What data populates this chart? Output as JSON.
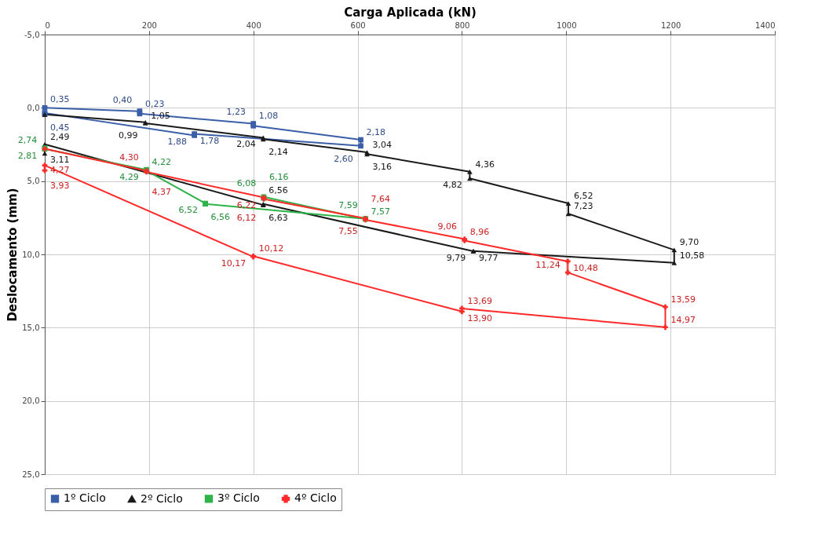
{
  "chart_data": {
    "type": "line",
    "xlabel": "Carga Aplicada (kN)",
    "ylabel": "Deslocamento (mm)",
    "xlim": [
      0,
      1400
    ],
    "xticks": [
      0,
      200,
      400,
      600,
      800,
      1000,
      1200,
      1400
    ],
    "ylim": [
      25,
      -5
    ],
    "yticks": [
      {
        "value": -5,
        "label": "-5,0"
      },
      {
        "value": 0,
        "label": "0,0"
      },
      {
        "value": 5,
        "label": "5,0"
      },
      {
        "value": 10,
        "label": "10,0"
      },
      {
        "value": 15,
        "label": "15,0"
      },
      {
        "value": 20,
        "label": "20,0"
      },
      {
        "value": 25,
        "label": "25,0"
      }
    ],
    "grid": true,
    "legend": "bottom",
    "line_style": "solid",
    "series": [
      {
        "name": "1º Ciclo",
        "color": "#3b5ea8",
        "marker": "square",
        "x": [
          0,
          182,
          182,
          400,
          400,
          606,
          606,
          287,
          287,
          0,
          0
        ],
        "values": [
          0,
          0.23,
          0.4,
          1.08,
          1.23,
          2.18,
          2.6,
          1.78,
          1.88,
          0.35,
          0.45
        ],
        "value_labels": [
          null,
          "0,23",
          "0,40",
          "1,08",
          "1,23",
          "2,18",
          "2,60",
          "1,78",
          "1,88",
          "0,35",
          "0,45"
        ]
      },
      {
        "name": "2º Ciclo",
        "color": "#1a1a1a",
        "marker": "triangle",
        "x": [
          0,
          193,
          193,
          419,
          419,
          618,
          618,
          815,
          815,
          1004,
          1004,
          1207,
          1207,
          822,
          822,
          419,
          419,
          0,
          0
        ],
        "values": [
          0.45,
          0.99,
          1.05,
          2.04,
          2.14,
          3.04,
          3.16,
          4.36,
          4.82,
          6.52,
          7.23,
          9.7,
          10.58,
          9.77,
          9.79,
          6.56,
          6.63,
          2.49,
          3.11
        ],
        "value_labels": [
          null,
          "0,99",
          "1,05",
          "2,04",
          "2,14",
          "3,04",
          "3,16",
          "4,36",
          "4,82",
          "6,52",
          "7,23",
          "9,70",
          "10,58",
          "9,77",
          "9,79",
          "6,56",
          "6,63",
          "2,49",
          "3,11"
        ]
      },
      {
        "name": "3º Ciclo",
        "color": "#2eb34a",
        "marker": "square",
        "x": [
          0,
          0,
          195,
          195,
          308,
          308,
          615,
          615,
          420,
          420
        ],
        "values": [
          2.74,
          2.81,
          4.22,
          4.29,
          6.52,
          6.56,
          7.57,
          7.59,
          6.08,
          6.16
        ],
        "value_labels": [
          "2,74",
          "2,81",
          "4,22",
          "4,29",
          "6,52",
          "6,56",
          "7,57",
          "7,59",
          "6,08",
          "6,16"
        ]
      },
      {
        "name": "4º Ciclo",
        "color": "#ff2a2a",
        "marker": "cross",
        "x": [
          0,
          195,
          195,
          420,
          420,
          615,
          615,
          805,
          805,
          1003,
          1003,
          1190,
          1190,
          800,
          800,
          400,
          400,
          0,
          0
        ],
        "values": [
          2.8,
          4.3,
          4.37,
          6.12,
          6.22,
          7.55,
          7.64,
          8.96,
          9.06,
          10.48,
          11.24,
          13.59,
          14.97,
          13.69,
          13.9,
          10.12,
          10.17,
          3.93,
          4.27
        ],
        "value_labels": [
          null,
          "4,30",
          "4,37",
          "6,12",
          "6,22",
          "7,55",
          "7,64",
          "8,96",
          "9,06",
          "10,48",
          "11,24",
          "13,59",
          "14,97",
          "13,69",
          "13,90",
          "10,12",
          "10,17",
          "3,93",
          "4,27"
        ]
      }
    ]
  }
}
